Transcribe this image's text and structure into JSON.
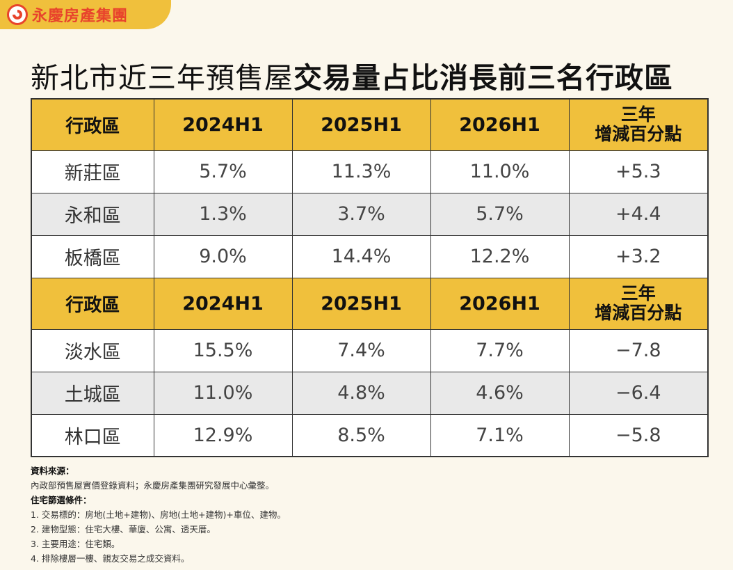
{
  "brand": {
    "name": "永慶房產集團",
    "logo_icon": "yongqing-spiral-logo-icon",
    "color": "#e8442c",
    "tab_color": "#f0c03c"
  },
  "title": {
    "normal_part": "新北市近三年預售屋",
    "bold_part": "交易量占比消長前三名行政區"
  },
  "table": {
    "header": {
      "district": "行政區",
      "y1": "2024H1",
      "y2": "2025H1",
      "y3": "2026H1",
      "change_line1": "三年",
      "change_line2": "增減百分點"
    },
    "growth_rows": [
      {
        "district": "新莊區",
        "y1": "5.7%",
        "y2": "11.3%",
        "y3": "11.0%",
        "change": "+5.3"
      },
      {
        "district": "永和區",
        "y1": "1.3%",
        "y2": "3.7%",
        "y3": "5.7%",
        "change": "+4.4"
      },
      {
        "district": "板橋區",
        "y1": "9.0%",
        "y2": "14.4%",
        "y3": "12.2%",
        "change": "+3.2"
      }
    ],
    "decline_rows": [
      {
        "district": "淡水區",
        "y1": "15.5%",
        "y2": "7.4%",
        "y3": "7.7%",
        "change": "−7.8"
      },
      {
        "district": "土城區",
        "y1": "11.0%",
        "y2": "4.8%",
        "y3": "4.6%",
        "change": "−6.4"
      },
      {
        "district": "林口區",
        "y1": "12.9%",
        "y2": "8.5%",
        "y3": "7.1%",
        "change": "−5.8"
      }
    ]
  },
  "notes": {
    "source_heading": "資料來源：",
    "source_text": "內政部預售屋實價登錄資料；永慶房產集團研究發展中心彙整。",
    "criteria_heading": "住宅篩選條件：",
    "criteria": [
      "1. 交易標的：房地(土地+建物)、房地(土地+建物)+車位、建物。",
      "2. 建物型態：住宅大樓、華廈、公寓、透天厝。",
      "3. 主要用途：住宅類。",
      "4. 排除樓層一樓、親友交易之成交資料。"
    ]
  }
}
